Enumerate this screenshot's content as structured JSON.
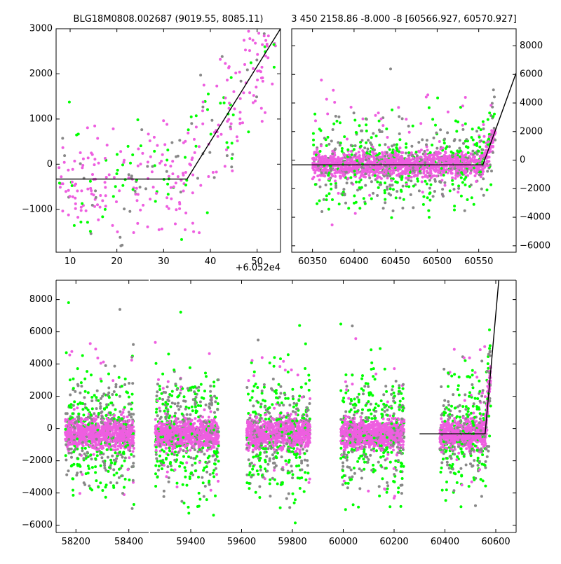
{
  "chart_data": [
    {
      "type": "scatter",
      "title": "BLG18M0808.002687 (9019.55, 8085.11)",
      "xlabel": "",
      "ylabel": "",
      "xlim": [
        7,
        55
      ],
      "ylim": [
        -1950,
        3000
      ],
      "x_offset_label": "+6.052e4",
      "xticks": [
        10,
        20,
        30,
        40,
        50
      ],
      "yticks": [
        -1000,
        0,
        1000,
        2000,
        3000
      ],
      "ytick_labels": [
        "−1000",
        "0",
        "1000",
        "2000",
        "3000"
      ],
      "y_axis_side": "left",
      "series_colors": [
        "#ee5ee0",
        "#00ff00",
        "#888888"
      ],
      "model_line": {
        "x": [
          7,
          35,
          55
        ],
        "y": [
          -330,
          -330,
          3000
        ]
      }
    },
    {
      "type": "scatter",
      "title": "3 450 2158.86 -8.000 -8 [60566.927, 60570.927]",
      "xlabel": "",
      "ylabel": "",
      "xlim": [
        60325,
        60595
      ],
      "ylim": [
        -6450,
        9200
      ],
      "xticks": [
        60350,
        60400,
        60450,
        60500,
        60550
      ],
      "yticks": [
        -6000,
        -4000,
        -2000,
        0,
        2000,
        4000,
        6000,
        8000
      ],
      "ytick_labels": [
        "−6000",
        "−4000",
        "−2000",
        "0",
        "2000",
        "4000",
        "6000",
        "8000"
      ],
      "y_axis_side": "right",
      "series_colors": [
        "#ee5ee0",
        "#00ff00",
        "#888888"
      ],
      "model_line": {
        "x": [
          60325,
          60555,
          60595
        ],
        "y": [
          -330,
          -330,
          6100
        ]
      }
    },
    {
      "type": "scatter",
      "title": "",
      "xlabel": "",
      "ylabel": "",
      "axis_segments": [
        {
          "xlim": [
            58125,
            58475
          ],
          "xticks": [
            58200,
            58400
          ]
        },
        {
          "xlim": [
            59240,
            60680
          ],
          "xticks": [
            59400,
            59600,
            59800,
            60000,
            60200,
            60400,
            60600
          ]
        }
      ],
      "ylim": [
        -6450,
        9200
      ],
      "yticks": [
        -6000,
        -4000,
        -2000,
        0,
        2000,
        4000,
        6000,
        8000
      ],
      "ytick_labels": [
        "−6000",
        "−4000",
        "−2000",
        "0",
        "2000",
        "4000",
        "6000",
        "8000"
      ],
      "y_axis_side": "left",
      "series_colors": [
        "#ee5ee0",
        "#00ff00",
        "#888888"
      ],
      "observing_seasons": [
        [
          58160,
          58420
        ],
        [
          59260,
          59510
        ],
        [
          59620,
          59870
        ],
        [
          59990,
          60240
        ],
        [
          60380,
          60580
        ]
      ],
      "model_line": {
        "x": [
          60300,
          60558,
          60612
        ],
        "y": [
          -330,
          -330,
          9200
        ]
      }
    }
  ]
}
